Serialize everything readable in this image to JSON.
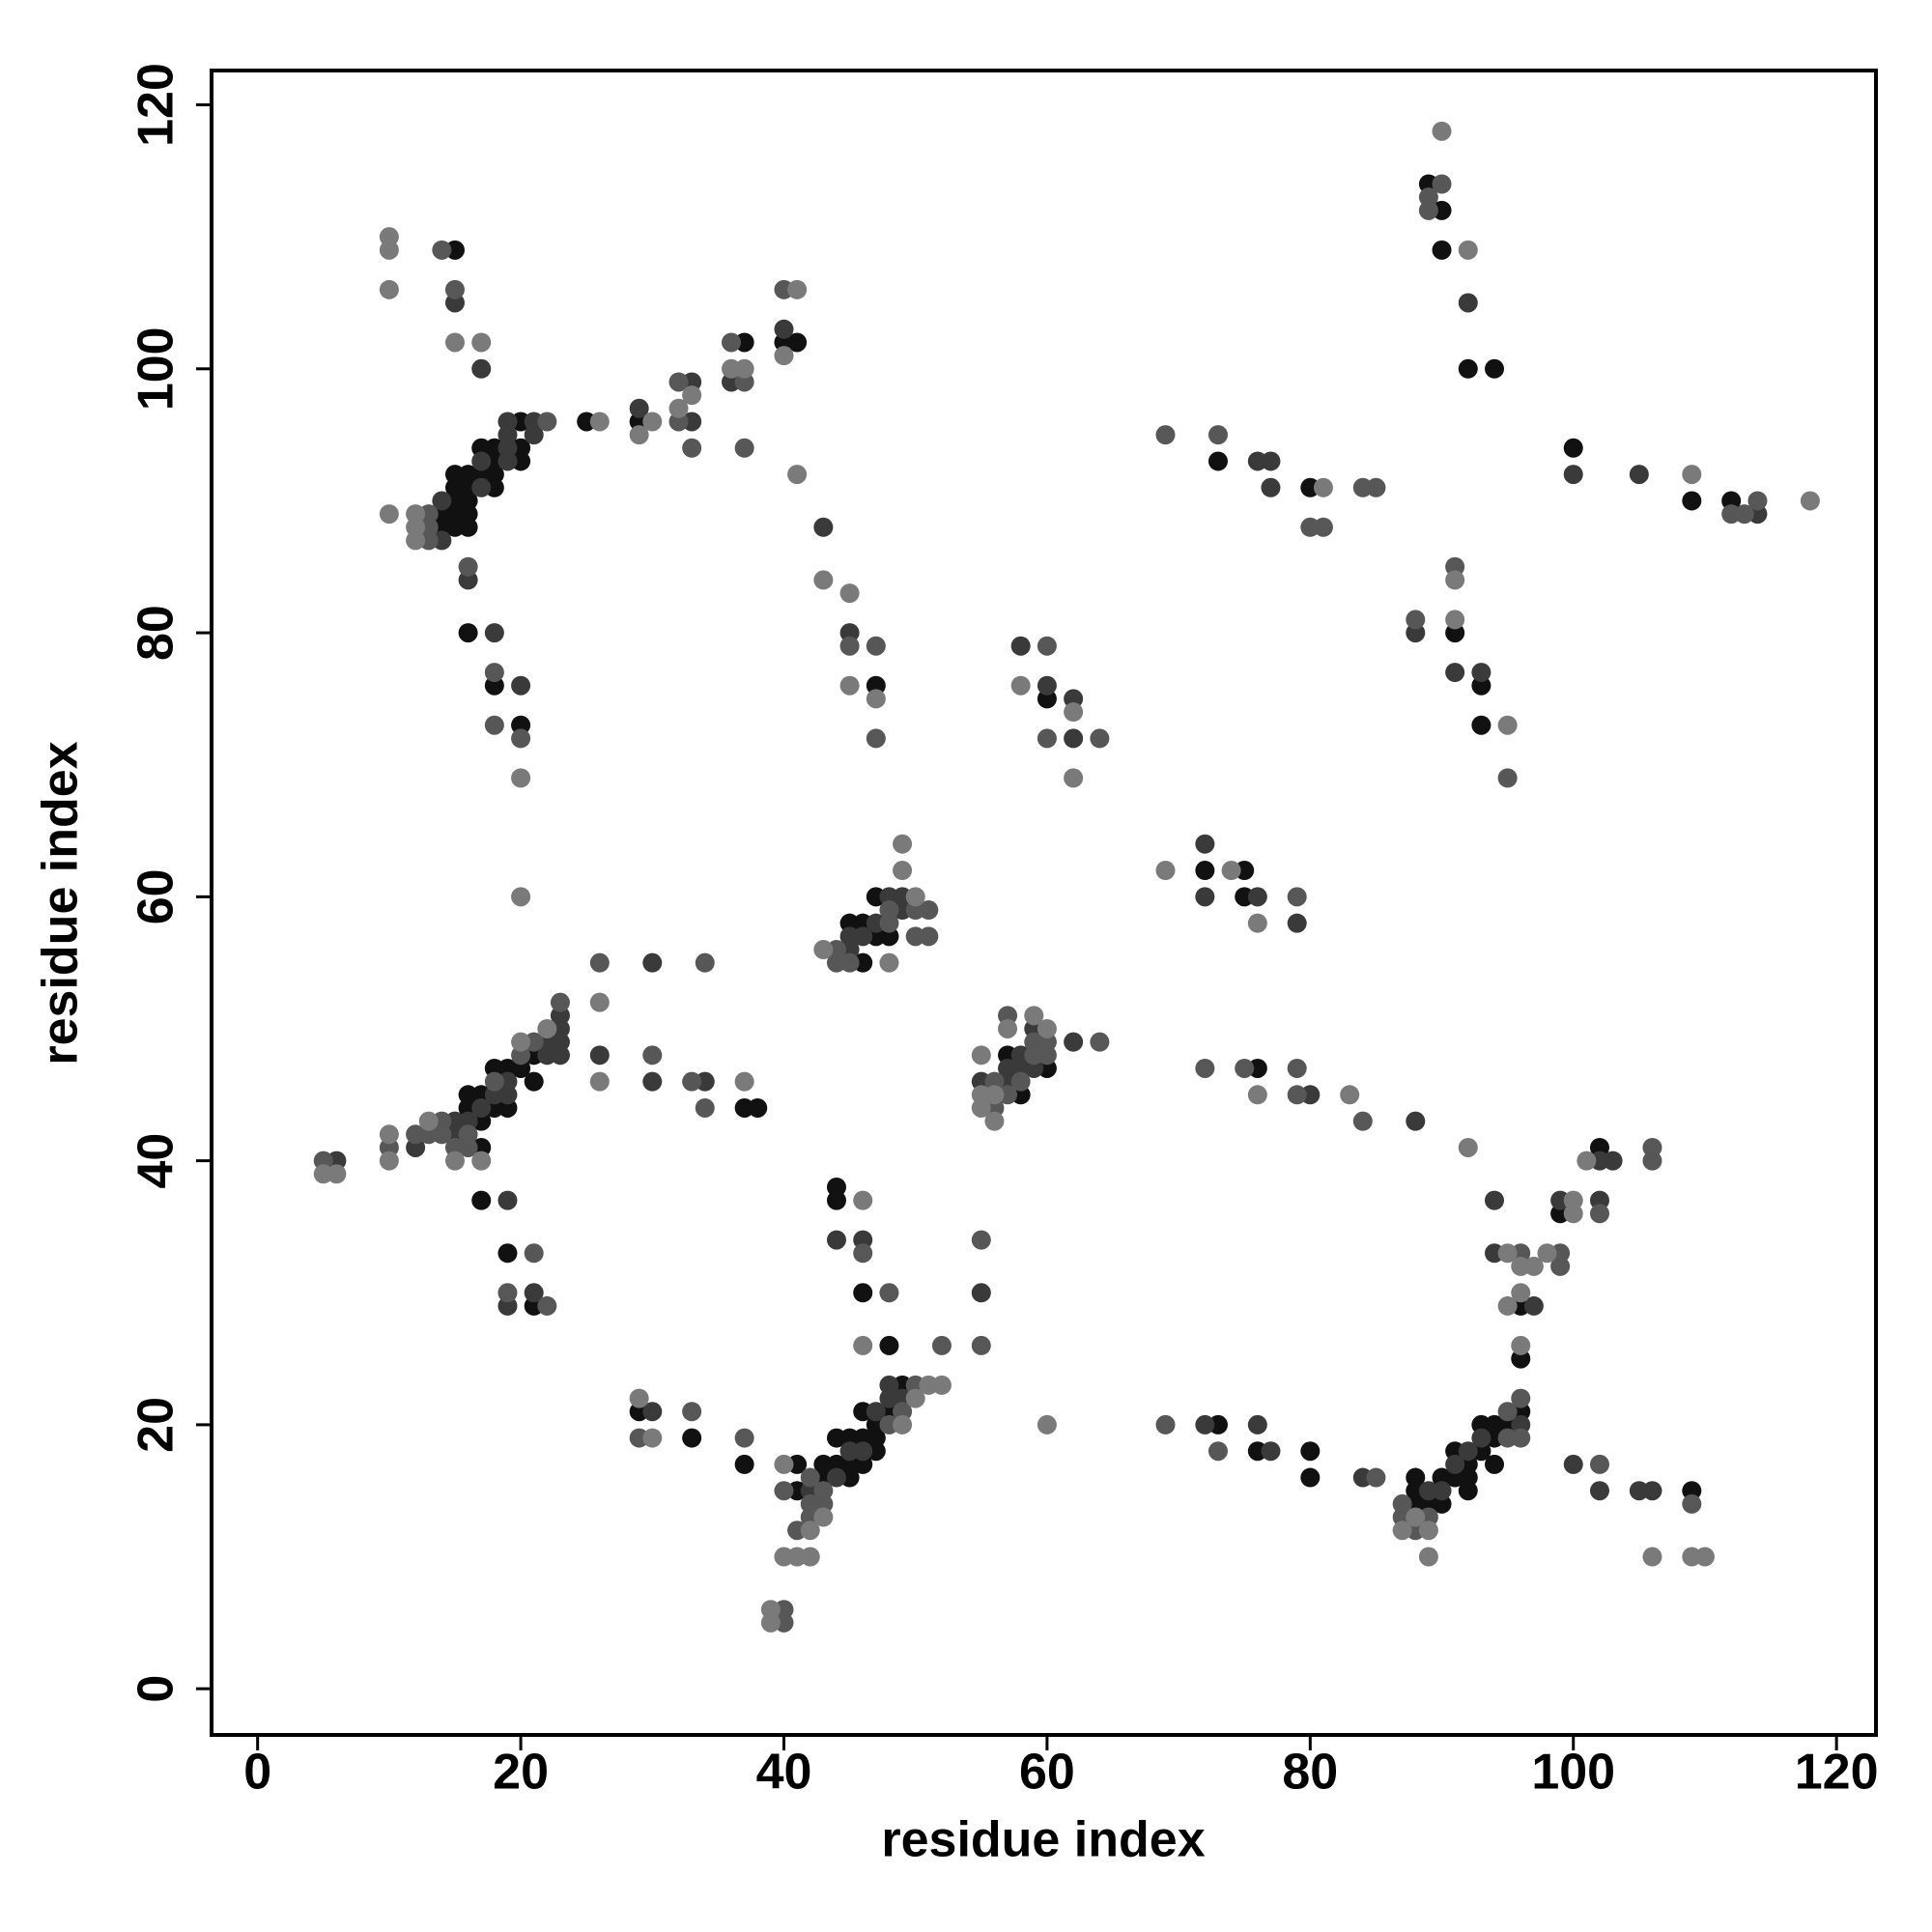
{
  "chart_data": {
    "type": "scatter",
    "x_label": "residue index",
    "y_label": "residue index",
    "xlim": [
      -3.5,
      123
    ],
    "ylim": [
      -3.5,
      122.6
    ],
    "xticks": [
      0,
      20,
      40,
      60,
      80,
      100,
      120
    ],
    "yticks": [
      0,
      20,
      40,
      60,
      80,
      100,
      120
    ],
    "series": [
      {
        "color": "#111111",
        "x": [
          15,
          14,
          14,
          15,
          15,
          15,
          15,
          15,
          16,
          16,
          16,
          16,
          16,
          17,
          17,
          18,
          18,
          18,
          18,
          20,
          20,
          20,
          25,
          16,
          18,
          20,
          29,
          37,
          40,
          41,
          47,
          60,
          73,
          80,
          89,
          90,
          90,
          92,
          94,
          100,
          109,
          112,
          91,
          93,
          93,
          47,
          45,
          46,
          46,
          47,
          48,
          72,
          75,
          75,
          16,
          16,
          17,
          17,
          17,
          18,
          18,
          19,
          19,
          20,
          21,
          21,
          37,
          38,
          17,
          19,
          21,
          57,
          58,
          60,
          76,
          44,
          44,
          46,
          48,
          41,
          41,
          43,
          43,
          44,
          44,
          45,
          45,
          45,
          46,
          46,
          46,
          47,
          47,
          47,
          48,
          49,
          29,
          33,
          37,
          73,
          76,
          80,
          80,
          88,
          88,
          88,
          89,
          90,
          90,
          91,
          91,
          92,
          92,
          92,
          93,
          93,
          94,
          94,
          94,
          95,
          96,
          96,
          109,
          96,
          99,
          102
        ],
        "values": [
          109,
          89,
          88,
          92,
          91,
          90,
          89,
          88,
          92,
          91,
          90,
          89,
          88,
          94,
          92,
          94,
          93,
          92,
          91,
          96,
          94,
          93,
          96,
          80,
          76,
          73,
          96,
          102,
          102,
          102,
          76,
          75,
          93,
          91,
          114,
          112,
          109,
          100,
          100,
          94,
          90,
          90,
          80,
          76,
          73,
          60,
          58,
          58,
          55,
          57,
          57,
          62,
          62,
          60,
          45,
          44,
          45,
          43,
          41,
          47,
          44,
          47,
          44,
          47,
          48,
          46,
          44,
          44,
          37,
          33,
          29,
          48,
          45,
          47,
          47,
          38,
          37,
          30,
          26,
          17,
          15,
          17,
          16,
          19,
          17,
          19,
          17,
          16,
          21,
          19,
          17,
          20,
          19,
          18,
          21,
          23,
          21,
          19,
          17,
          20,
          18,
          18,
          16,
          16,
          15,
          14,
          14,
          16,
          14,
          18,
          16,
          17,
          16,
          15,
          20,
          18,
          20,
          19,
          17,
          20,
          21,
          25,
          15,
          29,
          36,
          41
        ]
      },
      {
        "color": "#3a3a3a",
        "x": [
          15,
          17,
          14,
          17,
          17,
          19,
          19,
          19,
          19,
          21,
          21,
          14,
          16,
          18,
          20,
          29,
          33,
          33,
          36,
          40,
          43,
          45,
          58,
          60,
          62,
          62,
          76,
          77,
          77,
          92,
          100,
          105,
          114,
          88,
          91,
          93,
          48,
          49,
          45,
          45,
          46,
          47,
          49,
          72,
          72,
          76,
          79,
          6,
          12,
          15,
          15,
          16,
          17,
          18,
          19,
          19,
          22,
          22,
          23,
          23,
          23,
          23,
          26,
          30,
          30,
          34,
          19,
          19,
          21,
          55,
          57,
          57,
          58,
          58,
          59,
          59,
          62,
          80,
          88,
          44,
          46,
          55,
          42,
          44,
          45,
          46,
          47,
          48,
          48,
          49,
          30,
          72,
          76,
          77,
          84,
          89,
          90,
          91,
          92,
          93,
          96,
          100,
          102,
          105,
          106,
          94,
          94,
          97,
          99,
          102,
          102,
          103
        ],
        "values": [
          105,
          100,
          90,
          93,
          91,
          96,
          95,
          94,
          93,
          96,
          95,
          87,
          84,
          80,
          76,
          97,
          99,
          96,
          99,
          103,
          88,
          80,
          79,
          76,
          75,
          72,
          93,
          93,
          91,
          105,
          92,
          92,
          89,
          80,
          77,
          77,
          60,
          60,
          57,
          56,
          57,
          58,
          59,
          64,
          60,
          60,
          58,
          40,
          41,
          43,
          42,
          43,
          44,
          45,
          46,
          45,
          49,
          48,
          51,
          50,
          49,
          48,
          48,
          55,
          46,
          46,
          37,
          29,
          30,
          46,
          47,
          46,
          48,
          47,
          50,
          47,
          49,
          45,
          43,
          34,
          34,
          30,
          15,
          16,
          18,
          18,
          21,
          23,
          22,
          22,
          21,
          20,
          20,
          18,
          16,
          15,
          15,
          17,
          18,
          19,
          20,
          17,
          15,
          15,
          15,
          37,
          33,
          29,
          37,
          40,
          37,
          40
        ]
      },
      {
        "color": "#575757",
        "x": [
          14,
          15,
          13,
          13,
          13,
          22,
          16,
          18,
          18,
          20,
          32,
          32,
          33,
          36,
          37,
          37,
          40,
          45,
          47,
          47,
          60,
          60,
          64,
          69,
          73,
          80,
          81,
          84,
          85,
          89,
          89,
          90,
          112,
          113,
          114,
          88,
          91,
          95,
          44,
          44,
          45,
          48,
          48,
          50,
          51,
          50,
          51,
          79,
          5,
          10,
          12,
          13,
          14,
          14,
          15,
          16,
          16,
          18,
          20,
          21,
          23,
          26,
          30,
          33,
          34,
          34,
          21,
          19,
          22,
          56,
          56,
          57,
          57,
          58,
          59,
          59,
          60,
          60,
          64,
          72,
          75,
          79,
          79,
          84,
          46,
          48,
          52,
          55,
          55,
          40,
          41,
          42,
          42,
          42,
          43,
          43,
          48,
          49,
          50,
          40,
          40,
          29,
          33,
          37,
          69,
          73,
          85,
          87,
          87,
          88,
          89,
          95,
          95,
          96,
          96,
          102,
          109,
          96,
          99,
          99,
          102,
          106,
          106
        ],
        "values": [
          109,
          106,
          89,
          88,
          87,
          96,
          85,
          77,
          73,
          72,
          99,
          96,
          94,
          102,
          99,
          94,
          106,
          79,
          79,
          72,
          79,
          72,
          72,
          95,
          95,
          88,
          88,
          91,
          91,
          113,
          112,
          114,
          89,
          89,
          90,
          81,
          85,
          69,
          56,
          55,
          55,
          59,
          58,
          59,
          59,
          57,
          57,
          60,
          40,
          41,
          42,
          42,
          43,
          42,
          41,
          42,
          41,
          46,
          48,
          49,
          52,
          55,
          48,
          46,
          44,
          55,
          33,
          30,
          29,
          46,
          44,
          51,
          45,
          46,
          49,
          48,
          49,
          48,
          49,
          47,
          47,
          47,
          45,
          43,
          33,
          30,
          26,
          34,
          26,
          15,
          12,
          16,
          14,
          13,
          15,
          14,
          20,
          21,
          23,
          6,
          5,
          19,
          21,
          19,
          20,
          18,
          16,
          14,
          13,
          12,
          13,
          21,
          19,
          22,
          19,
          17,
          14,
          33,
          33,
          32,
          36,
          41,
          40
        ]
      },
      {
        "color": "#7a7a7a",
        "x": [
          10,
          10,
          10,
          15,
          17,
          10,
          12,
          12,
          12,
          26,
          20,
          20,
          29,
          30,
          32,
          33,
          36,
          37,
          40,
          41,
          41,
          43,
          45,
          45,
          47,
          58,
          62,
          62,
          81,
          90,
          92,
          109,
          118,
          91,
          91,
          95,
          49,
          49,
          50,
          43,
          48,
          69,
          74,
          76,
          5,
          6,
          10,
          10,
          13,
          15,
          17,
          20,
          22,
          26,
          26,
          37,
          55,
          55,
          55,
          56,
          56,
          57,
          59,
          60,
          76,
          83,
          46,
          46,
          40,
          42,
          43,
          49,
          50,
          51,
          52,
          40,
          41,
          42,
          39,
          39,
          29,
          30,
          60,
          87,
          88,
          89,
          89,
          96,
          106,
          109,
          110,
          92,
          95,
          95,
          96,
          96,
          97,
          98,
          100,
          100,
          101
        ],
        "values": [
          110,
          109,
          106,
          102,
          102,
          89,
          89,
          88,
          87,
          96,
          69,
          60,
          95,
          96,
          97,
          98,
          100,
          100,
          101,
          106,
          92,
          84,
          83,
          76,
          75,
          76,
          74,
          69,
          91,
          118,
          109,
          92,
          90,
          84,
          81,
          73,
          64,
          62,
          60,
          56,
          55,
          62,
          62,
          58,
          39,
          39,
          42,
          40,
          43,
          40,
          40,
          49,
          50,
          52,
          46,
          46,
          48,
          45,
          44,
          45,
          43,
          50,
          51,
          50,
          45,
          45,
          37,
          26,
          17,
          12,
          13,
          20,
          22,
          23,
          23,
          10,
          10,
          10,
          6,
          5,
          22,
          19,
          20,
          12,
          13,
          12,
          10,
          26,
          10,
          10,
          10,
          41,
          33,
          29,
          32,
          30,
          32,
          33,
          37,
          36,
          40
        ]
      }
    ]
  }
}
